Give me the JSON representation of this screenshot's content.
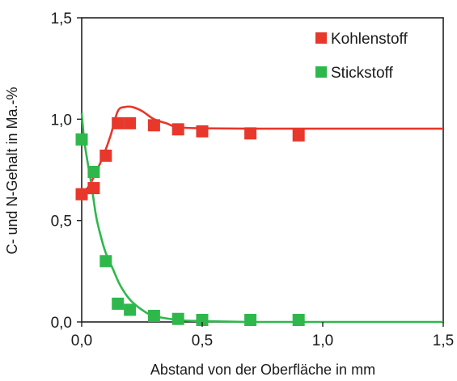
{
  "chart_data": {
    "type": "scatter",
    "xlabel": "Abstand von der Oberfläche in mm",
    "ylabel": "C- und N-Gehalt in Ma.-%",
    "xlim": [
      0,
      1.5
    ],
    "ylim": [
      0,
      1.5
    ],
    "x_ticks": [
      "0,0",
      "0,5",
      "1,0",
      "1,5"
    ],
    "y_ticks": [
      "0,0",
      "0,5",
      "1,0",
      "1,5"
    ],
    "x_tick_values": [
      0,
      0.5,
      1.0,
      1.5
    ],
    "y_tick_values": [
      0,
      0.5,
      1.0,
      1.5
    ],
    "grid": false,
    "legend_position": "top-right",
    "series": [
      {
        "name": "Kohlenstoff",
        "color": "#e8372b",
        "points": [
          {
            "x": 0.0,
            "y": 0.63
          },
          {
            "x": 0.05,
            "y": 0.66
          },
          {
            "x": 0.1,
            "y": 0.82
          },
          {
            "x": 0.15,
            "y": 0.98
          },
          {
            "x": 0.2,
            "y": 0.98
          },
          {
            "x": 0.3,
            "y": 0.97
          },
          {
            "x": 0.4,
            "y": 0.95
          },
          {
            "x": 0.5,
            "y": 0.94
          },
          {
            "x": 0.7,
            "y": 0.93
          },
          {
            "x": 0.9,
            "y": 0.92
          }
        ],
        "fit_curve": [
          {
            "x": 0.0,
            "y": 0.63
          },
          {
            "x": 0.03,
            "y": 0.67
          },
          {
            "x": 0.06,
            "y": 0.74
          },
          {
            "x": 0.09,
            "y": 0.82
          },
          {
            "x": 0.12,
            "y": 0.92
          },
          {
            "x": 0.15,
            "y": 1.04
          },
          {
            "x": 0.18,
            "y": 1.06
          },
          {
            "x": 0.21,
            "y": 1.06
          },
          {
            "x": 0.25,
            "y": 1.04
          },
          {
            "x": 0.3,
            "y": 1.0
          },
          {
            "x": 0.35,
            "y": 0.98
          },
          {
            "x": 0.4,
            "y": 0.96
          },
          {
            "x": 0.5,
            "y": 0.955
          },
          {
            "x": 0.7,
            "y": 0.953
          },
          {
            "x": 1.0,
            "y": 0.953
          },
          {
            "x": 1.5,
            "y": 0.953
          }
        ]
      },
      {
        "name": "Stickstoff",
        "color": "#2eb84c",
        "points": [
          {
            "x": 0.0,
            "y": 0.9
          },
          {
            "x": 0.05,
            "y": 0.74
          },
          {
            "x": 0.1,
            "y": 0.3
          },
          {
            "x": 0.15,
            "y": 0.09
          },
          {
            "x": 0.2,
            "y": 0.06
          },
          {
            "x": 0.3,
            "y": 0.03
          },
          {
            "x": 0.4,
            "y": 0.015
          },
          {
            "x": 0.5,
            "y": 0.01
          },
          {
            "x": 0.7,
            "y": 0.01
          },
          {
            "x": 0.9,
            "y": 0.01
          }
        ],
        "fit_curve": [
          {
            "x": 0.0,
            "y": 1.03
          },
          {
            "x": 0.01,
            "y": 0.9
          },
          {
            "x": 0.02,
            "y": 0.82
          },
          {
            "x": 0.04,
            "y": 0.68
          },
          {
            "x": 0.06,
            "y": 0.52
          },
          {
            "x": 0.08,
            "y": 0.42
          },
          {
            "x": 0.1,
            "y": 0.34
          },
          {
            "x": 0.13,
            "y": 0.26
          },
          {
            "x": 0.16,
            "y": 0.18
          },
          {
            "x": 0.2,
            "y": 0.11
          },
          {
            "x": 0.25,
            "y": 0.06
          },
          {
            "x": 0.3,
            "y": 0.03
          },
          {
            "x": 0.4,
            "y": 0.01
          },
          {
            "x": 0.5,
            "y": 0.004
          },
          {
            "x": 0.7,
            "y": 0.0
          },
          {
            "x": 1.0,
            "y": 0.0
          },
          {
            "x": 1.5,
            "y": 0.0
          }
        ]
      }
    ]
  }
}
